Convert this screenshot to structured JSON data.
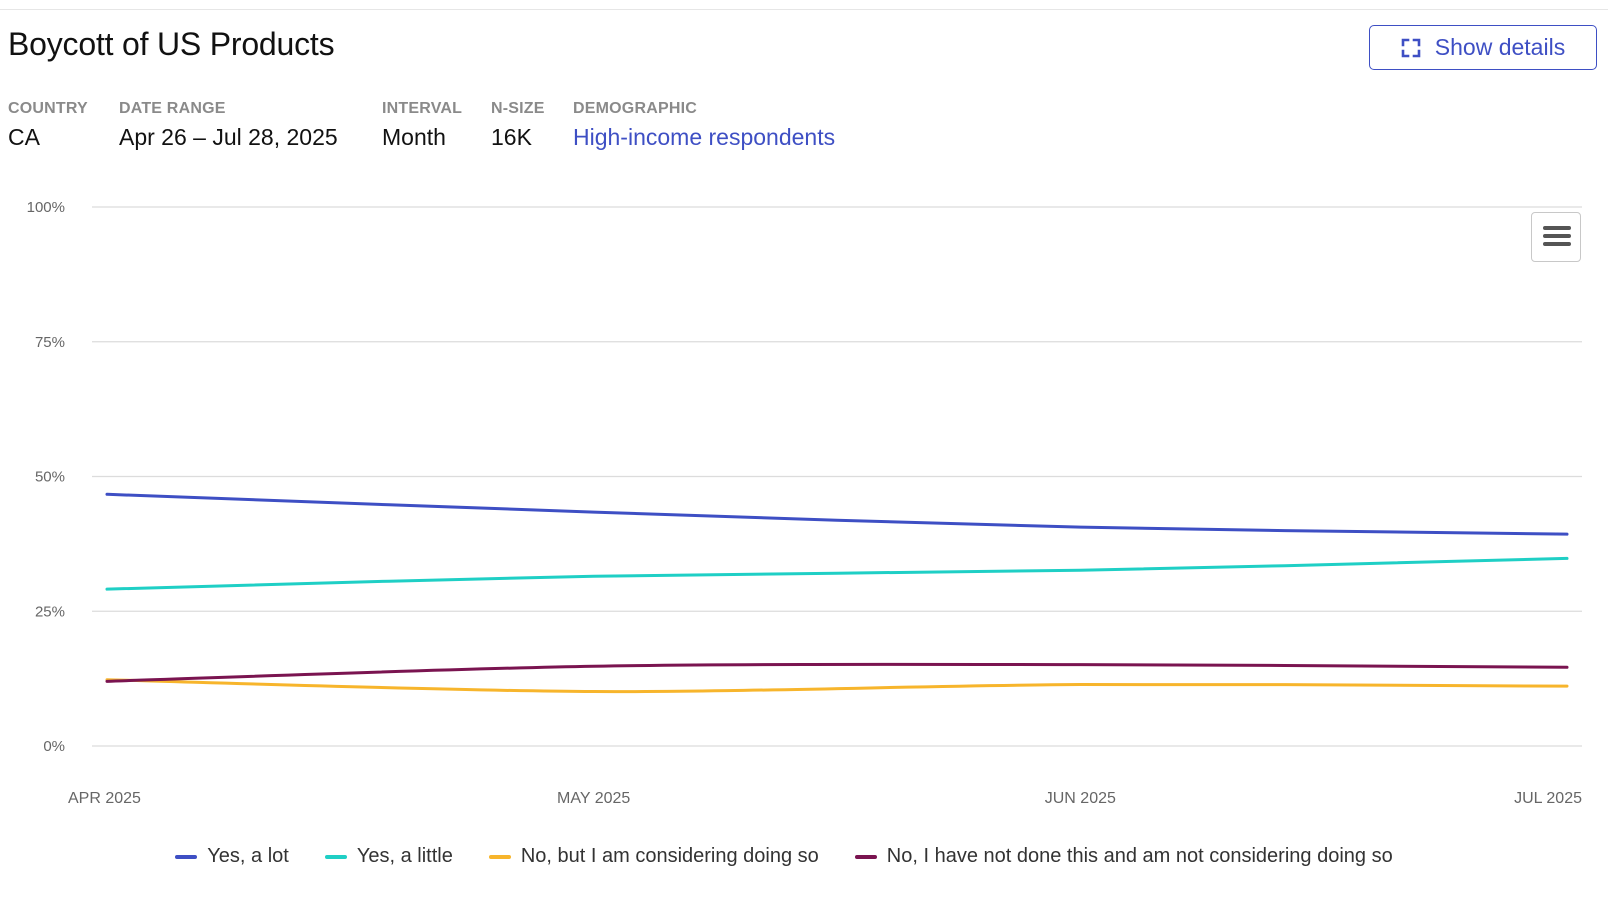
{
  "header": {
    "title": "Boycott of US Products",
    "details_button_label": "Show details"
  },
  "meta": {
    "country_label": "COUNTRY",
    "country_value": "CA",
    "date_range_label": "DATE RANGE",
    "date_range_value": "Apr 26 – Jul 28, 2025",
    "interval_label": "INTERVAL",
    "interval_value": "Month",
    "nsize_label": "N-SIZE",
    "nsize_value": "16K",
    "demographic_label": "DEMOGRAPHIC",
    "demographic_value": "High-income respondents"
  },
  "colors": {
    "accent": "#3e4fc4",
    "grid": "#dcdcdc",
    "tick_text": "#666666"
  },
  "icons": {
    "details": "expand-icon",
    "menu": "hamburger-menu-icon"
  },
  "chart_data": {
    "type": "line",
    "title": "Boycott of US Products",
    "categories": [
      "APR 2025",
      "MAY 2025",
      "JUN 2025",
      "JUL 2025"
    ],
    "y_ticks": [
      "0%",
      "25%",
      "50%",
      "75%",
      "100%"
    ],
    "ylim": [
      0,
      100
    ],
    "grid": true,
    "legend_position": "bottom-center",
    "series": [
      {
        "name": "Yes, a lot",
        "color": "#3e4fc4",
        "values": [
          46.7,
          43.4,
          40.6,
          39.3
        ]
      },
      {
        "name": "Yes, a little",
        "color": "#1fcfc5",
        "values": [
          29.1,
          31.5,
          32.6,
          34.8
        ]
      },
      {
        "name": "No, but I am considering doing so",
        "color": "#f7b52c",
        "values": [
          12.3,
          10.1,
          11.4,
          11.1
        ]
      },
      {
        "name": "No, I have not done this and am not considering doing so",
        "color": "#7a1450",
        "values": [
          12.0,
          14.8,
          15.1,
          14.6
        ]
      }
    ]
  }
}
